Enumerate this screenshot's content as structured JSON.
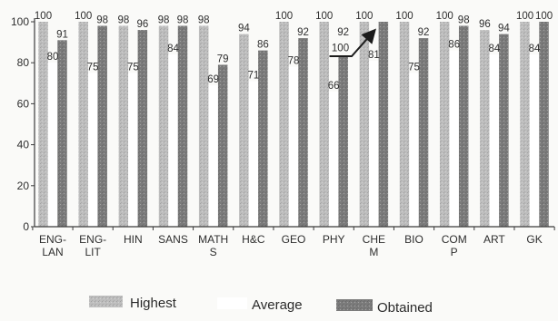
{
  "chart_data": {
    "type": "bar",
    "categories": [
      "ENG-LAN",
      "ENG-LIT",
      "HIN",
      "SANS",
      "MATHS",
      "H&C",
      "GEO",
      "PHY",
      "CHEM",
      "BIO",
      "COMP",
      "ART",
      "GK"
    ],
    "series": [
      {
        "name": "Highest",
        "values": [
          100,
          100,
          98,
          98,
          98,
          94,
          100,
          100,
          100,
          100,
          100,
          96,
          100
        ],
        "color": "#bdbdbd"
      },
      {
        "name": "Average",
        "values": [
          80,
          75,
          75,
          84,
          69,
          71,
          78,
          66,
          81,
          75,
          86,
          84,
          84
        ],
        "color": "#ffffff"
      },
      {
        "name": "Obtained",
        "values": [
          91,
          98,
          96,
          98,
          79,
          86,
          92,
          92,
          100,
          92,
          98,
          94,
          100
        ],
        "color": "#7b7b7b"
      }
    ],
    "yticks": [
      0,
      20,
      40,
      60,
      80,
      100
    ],
    "ylim": [
      0,
      100
    ],
    "grid": false,
    "legend": "bottom",
    "data_labels": true
  }
}
